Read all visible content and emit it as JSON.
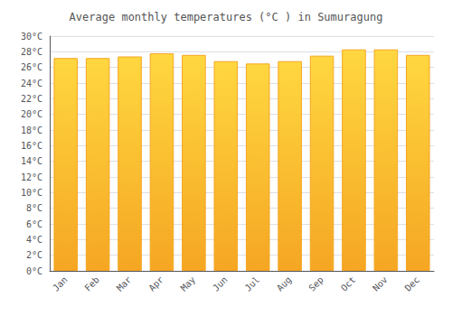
{
  "chart_data": {
    "type": "bar",
    "title": "Average monthly temperatures (°C ) in Sumuragung",
    "categories": [
      "Jan",
      "Feb",
      "Mar",
      "Apr",
      "May",
      "Jun",
      "Jul",
      "Aug",
      "Sep",
      "Oct",
      "Nov",
      "Dec"
    ],
    "values": [
      27.2,
      27.2,
      27.4,
      27.8,
      27.6,
      26.8,
      26.5,
      26.8,
      27.5,
      28.3,
      28.3,
      27.6
    ],
    "color": "#F5A623",
    "ylim": [
      0,
      30
    ],
    "yticks": [
      {
        "value": 0,
        "label": "0°C"
      },
      {
        "value": 2,
        "label": "2°C"
      },
      {
        "value": 4,
        "label": "4°C"
      },
      {
        "value": 6,
        "label": "6°C"
      },
      {
        "value": 8,
        "label": "8°C"
      },
      {
        "value": 10,
        "label": "10°C"
      },
      {
        "value": 12,
        "label": "12°C"
      },
      {
        "value": 14,
        "label": "14°C"
      },
      {
        "value": 16,
        "label": "16°C"
      },
      {
        "value": 18,
        "label": "18°C"
      },
      {
        "value": 20,
        "label": "20°C"
      },
      {
        "value": 22,
        "label": "22°C"
      },
      {
        "value": 24,
        "label": "24°C"
      },
      {
        "value": 26,
        "label": "26°C"
      },
      {
        "value": 28,
        "label": "28°C"
      },
      {
        "value": 30,
        "label": "30°C"
      }
    ],
    "grid": true
  }
}
